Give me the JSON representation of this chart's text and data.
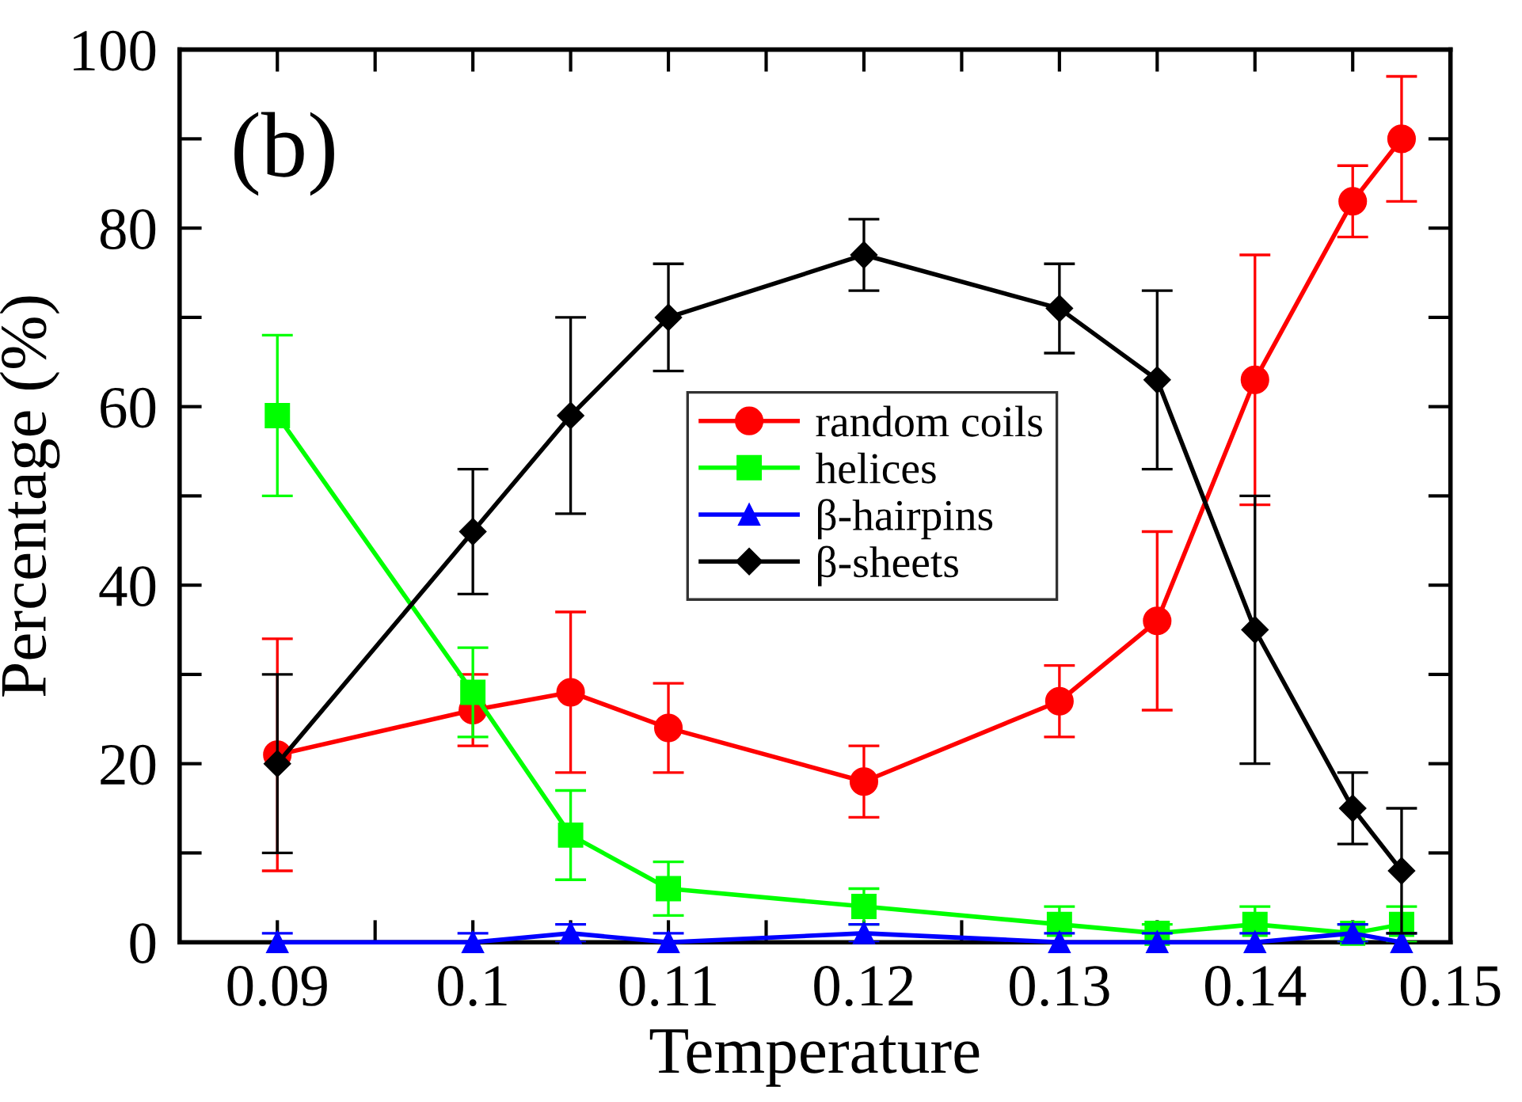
{
  "chart_data": {
    "type": "line",
    "xlabel": "Temperature",
    "ylabel": "Percentage (%)",
    "annotations": [
      "(b)"
    ],
    "x": [
      0.09,
      0.1,
      0.105,
      0.11,
      0.12,
      0.13,
      0.135,
      0.14,
      0.145,
      0.1475
    ],
    "series": [
      {
        "name": "random coils",
        "color": "#ff0000",
        "marker": "circle",
        "values": [
          21,
          26,
          28,
          24,
          18,
          27,
          36,
          63,
          83,
          90
        ],
        "errors": [
          13,
          4,
          9,
          5,
          4,
          4,
          10,
          14,
          4,
          7
        ]
      },
      {
        "name": "helices",
        "color": "#00ff00",
        "marker": "square",
        "values": [
          59,
          28,
          12,
          6,
          4,
          2,
          1,
          2,
          1,
          2
        ],
        "errors": [
          9,
          5,
          5,
          3,
          2,
          2,
          1,
          2,
          1,
          2
        ]
      },
      {
        "name": "β-hairpins",
        "color": "#0000ff",
        "marker": "triangle",
        "values": [
          0,
          0,
          1,
          0,
          1,
          0,
          0,
          0,
          1,
          0
        ],
        "errors": [
          1,
          1,
          1,
          1,
          1,
          1,
          1,
          1,
          1,
          1
        ]
      },
      {
        "name": "β-sheets",
        "color": "#000000",
        "marker": "diamond",
        "values": [
          20,
          46,
          59,
          70,
          77,
          71,
          63,
          35,
          15,
          8
        ],
        "errors": [
          10,
          7,
          11,
          6,
          4,
          5,
          10,
          15,
          4,
          7
        ]
      }
    ],
    "xlim": [
      0.085,
      0.15
    ],
    "ylim": [
      0,
      100
    ],
    "xticks": [
      0.09,
      {
        "value": 0.095,
        "label": null
      },
      0.1,
      {
        "value": 0.105,
        "label": null
      },
      0.11,
      {
        "value": 0.115,
        "label": null
      },
      0.12,
      {
        "value": 0.125,
        "label": null
      },
      0.13,
      {
        "value": 0.135,
        "label": null
      },
      0.14,
      {
        "value": 0.145,
        "label": null
      },
      0.15
    ],
    "yticks": [
      0,
      {
        "value": 10,
        "label": null
      },
      20,
      {
        "value": 30,
        "label": null
      },
      40,
      {
        "value": 50,
        "label": null
      },
      60,
      {
        "value": 70,
        "label": null
      },
      80,
      {
        "value": 90,
        "label": null
      },
      100
    ],
    "grid": false,
    "legend": "center",
    "line_style": "solid"
  }
}
